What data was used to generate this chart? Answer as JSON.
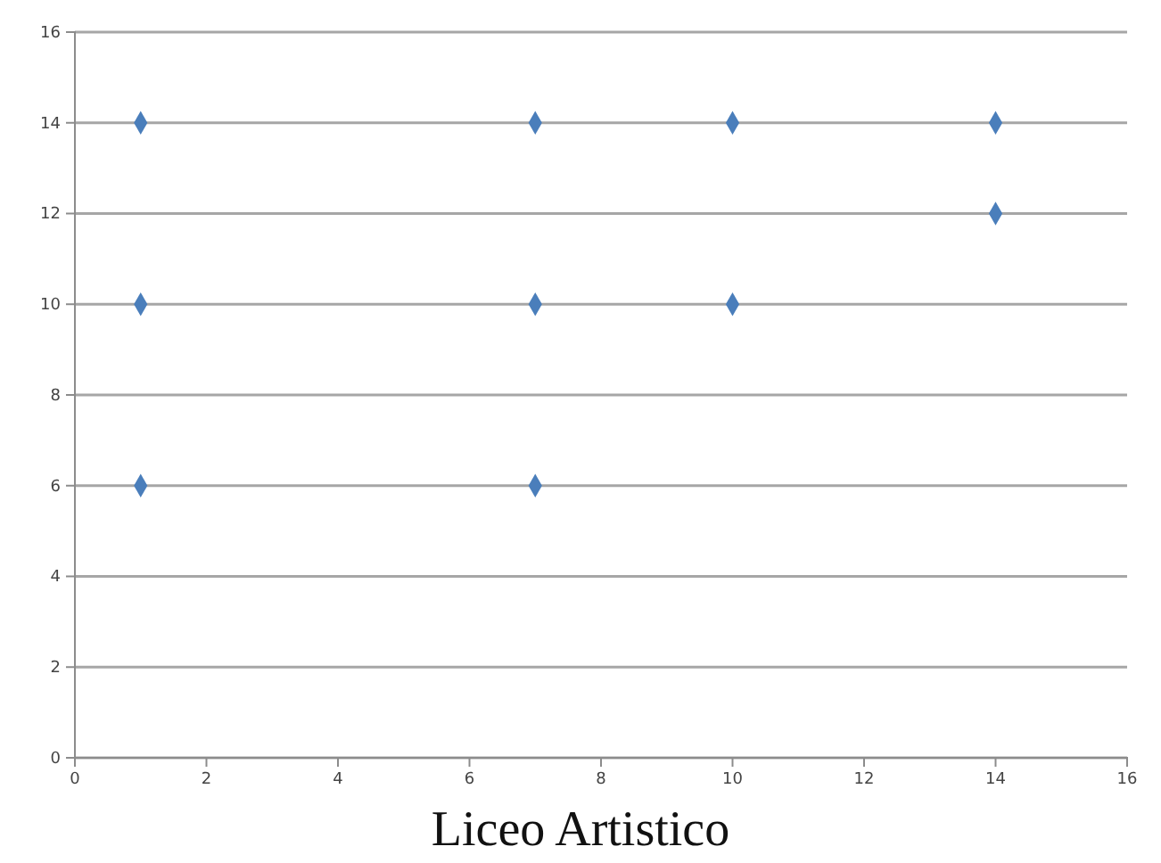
{
  "chart_data": {
    "type": "scatter",
    "xlabel": "Liceo Artistico",
    "x": [
      1,
      1,
      1,
      7,
      7,
      7,
      10,
      10,
      14,
      14
    ],
    "values": [
      14,
      10,
      6,
      14,
      10,
      6,
      14,
      10,
      14,
      12
    ],
    "color": "#4a7ebb",
    "marker": "diamond",
    "xlim": [
      0,
      16
    ],
    "ylim": [
      0,
      16
    ],
    "xticks": [
      0,
      2,
      4,
      6,
      8,
      10,
      12,
      14,
      16
    ],
    "yticks": [
      0,
      2,
      4,
      6,
      8,
      10,
      12,
      14,
      16
    ],
    "grid": "y"
  }
}
